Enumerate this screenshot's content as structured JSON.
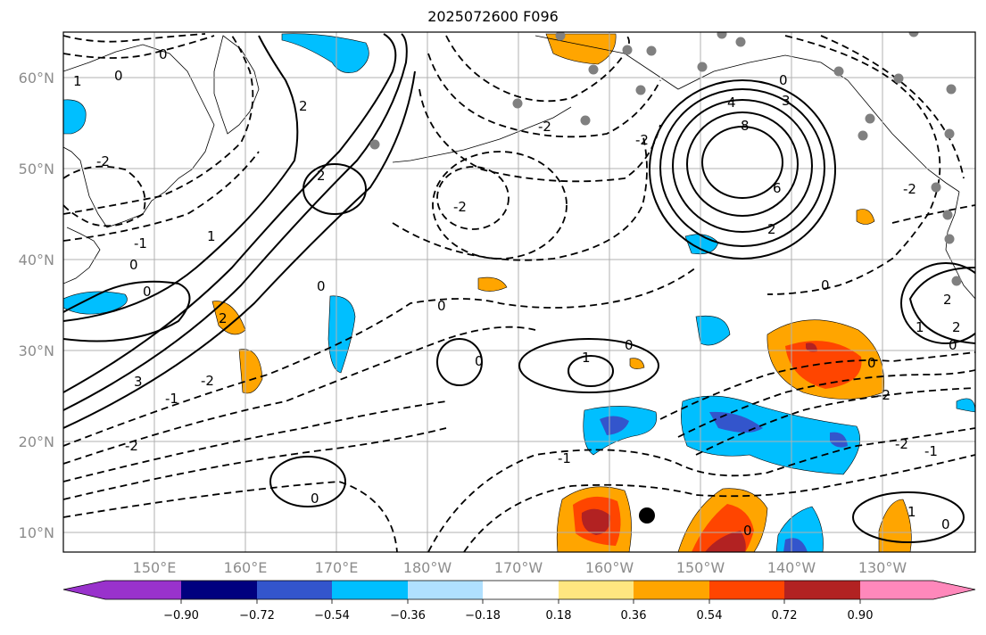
{
  "title": "2025072600 F096",
  "lat_labels": [
    "60°N",
    "50°N",
    "40°N",
    "30°N",
    "20°N",
    "10°N"
  ],
  "lon_labels": [
    "150°E",
    "160°E",
    "170°E",
    "180°W",
    "170°W",
    "160°W",
    "150°W",
    "140°W",
    "130°W"
  ],
  "colorbar": {
    "colors": [
      "#9932cc",
      "#00007f",
      "#3355cc",
      "#00bfff",
      "#b0e0ff",
      "#ffffff",
      "#ffe680",
      "#ffa500",
      "#ff4500",
      "#b22222",
      "#ff88bb"
    ],
    "tick_labels": [
      "−0.90",
      "−0.72",
      "−0.54",
      "−0.36",
      "−0.18",
      "0.18",
      "0.36",
      "0.54",
      "0.72",
      "0.90"
    ]
  },
  "contour_labels": [
    "0",
    "1",
    "2",
    "3",
    "4",
    "6",
    "8",
    "-1",
    "-2"
  ],
  "marker_colors": {
    "station": "#808080",
    "storm": "#000000"
  }
}
